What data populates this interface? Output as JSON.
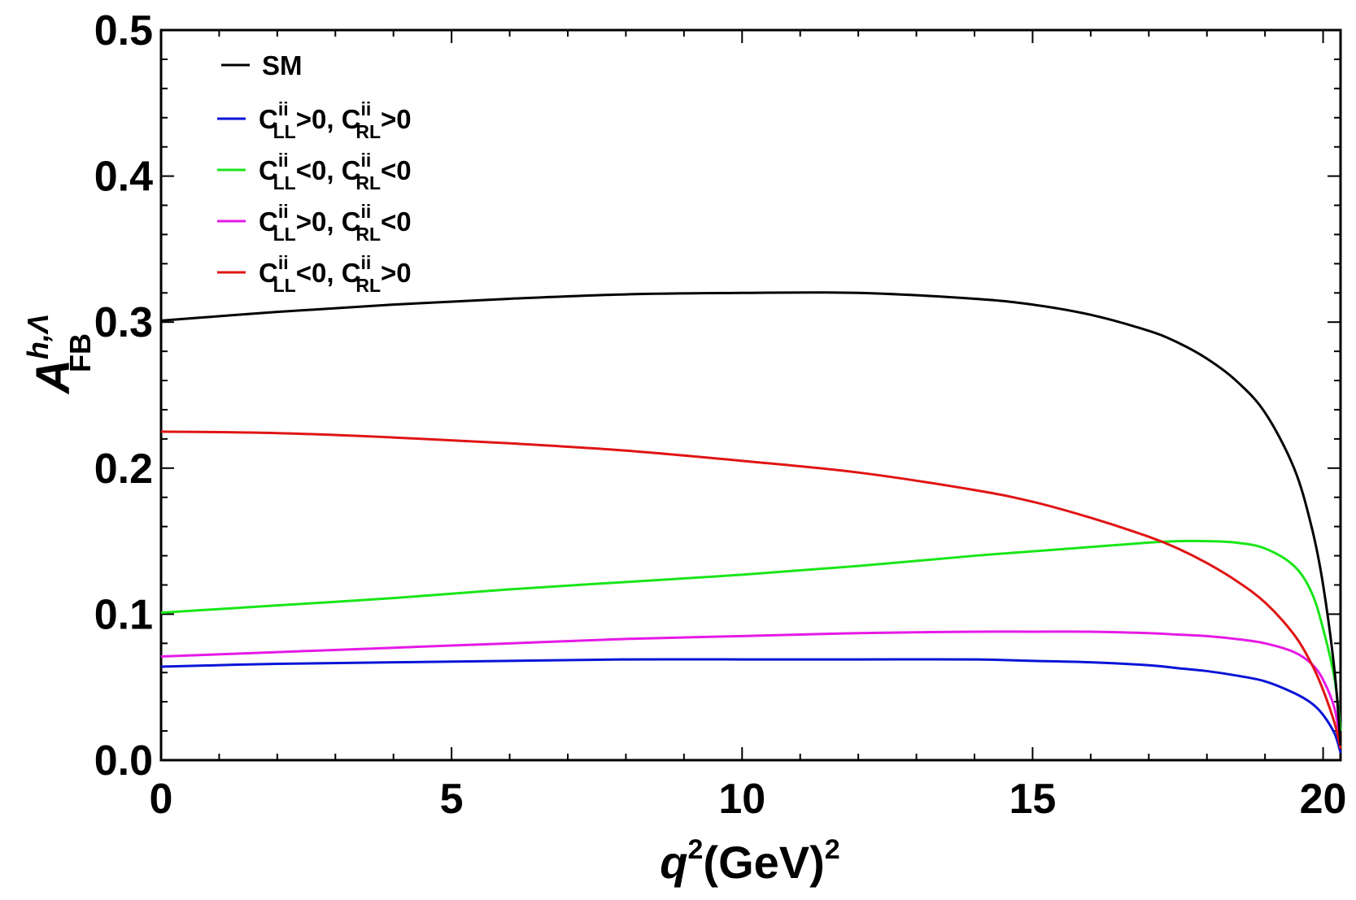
{
  "chart_data": {
    "type": "line",
    "title": "",
    "xlabel": {
      "base": "q",
      "sup": "2",
      "unit": "(GeV)",
      "unit_sup": "2"
    },
    "ylabel": {
      "base": "A",
      "sub": "FB",
      "sup": "h,Λ"
    },
    "xlim": [
      0,
      20.3
    ],
    "ylim": [
      0,
      0.5
    ],
    "xticks": [
      0,
      5,
      10,
      15,
      20
    ],
    "xtick_labels": [
      "0",
      "5",
      "10",
      "15",
      "20"
    ],
    "yticks": [
      0,
      0.1,
      0.2,
      0.3,
      0.4,
      0.5
    ],
    "ytick_labels": [
      "0.0",
      "0.1",
      "0.2",
      "0.3",
      "0.4",
      "0.5"
    ],
    "grid": false,
    "legend_position": "top-left",
    "x": [
      0,
      2,
      4,
      6,
      8,
      10,
      12,
      14,
      15,
      16,
      17,
      17.5,
      18,
      18.5,
      19,
      19.5,
      19.8,
      20.0,
      20.2,
      20.3
    ],
    "series": [
      {
        "name": "SM",
        "label": {
          "main": "SM"
        },
        "color": "#000000",
        "values": [
          0.301,
          0.307,
          0.312,
          0.316,
          0.319,
          0.32,
          0.32,
          0.316,
          0.312,
          0.305,
          0.294,
          0.286,
          0.275,
          0.26,
          0.238,
          0.2,
          0.16,
          0.12,
          0.06,
          0.01
        ]
      },
      {
        "name": "C_LL^ii>0, C_RL^ii>0",
        "label": {
          "a": "C",
          "a_sup": "ii",
          "a_sub": "LL",
          "a_rel": ">0, ",
          "b": "C",
          "b_sup": "ii",
          "b_sub": "RL",
          "b_rel": ">0"
        },
        "color": "#0a14d6",
        "values": [
          0.064,
          0.066,
          0.067,
          0.068,
          0.069,
          0.069,
          0.069,
          0.069,
          0.068,
          0.067,
          0.065,
          0.063,
          0.061,
          0.058,
          0.054,
          0.046,
          0.039,
          0.031,
          0.018,
          0.005
        ]
      },
      {
        "name": "C_LL^ii<0, C_RL^ii<0",
        "label": {
          "a": "C",
          "a_sup": "ii",
          "a_sub": "LL",
          "a_rel": "<0, ",
          "b": "C",
          "b_sup": "ii",
          "b_sub": "RL",
          "b_rel": "<0"
        },
        "color": "#19e619",
        "values": [
          0.101,
          0.106,
          0.111,
          0.117,
          0.122,
          0.127,
          0.133,
          0.14,
          0.143,
          0.146,
          0.149,
          0.15,
          0.15,
          0.149,
          0.145,
          0.133,
          0.115,
          0.09,
          0.055,
          0.02
        ]
      },
      {
        "name": "C_LL^ii>0, C_RL^ii<0",
        "label": {
          "a": "C",
          "a_sup": "ii",
          "a_sub": "LL",
          "a_rel": ">0, ",
          "b": "C",
          "b_sup": "ii",
          "b_sub": "RL",
          "b_rel": "<0"
        },
        "color": "#e619e6",
        "values": [
          0.071,
          0.074,
          0.077,
          0.08,
          0.083,
          0.085,
          0.087,
          0.088,
          0.088,
          0.088,
          0.087,
          0.086,
          0.085,
          0.083,
          0.08,
          0.074,
          0.066,
          0.055,
          0.035,
          0.01
        ]
      },
      {
        "name": "C_LL^ii<0, C_RL^ii>0",
        "label": {
          "a": "C",
          "a_sup": "ii",
          "a_sub": "LL",
          "a_rel": "<0, ",
          "b": "C",
          "b_sup": "ii",
          "b_sub": "RL",
          "b_rel": ">0"
        },
        "color": "#e01414",
        "values": [
          0.225,
          0.224,
          0.221,
          0.217,
          0.212,
          0.205,
          0.197,
          0.185,
          0.177,
          0.166,
          0.153,
          0.145,
          0.135,
          0.123,
          0.108,
          0.086,
          0.066,
          0.048,
          0.025,
          0.008
        ]
      }
    ]
  }
}
